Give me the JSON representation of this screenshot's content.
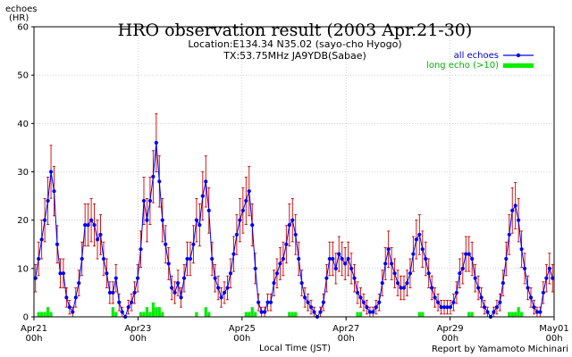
{
  "chart_data": {
    "type": "line",
    "title": "HRO observation result (2003 Apr.21-30)",
    "location": "Location:E134.34 N35.02 (sayo-cho Hyogo)",
    "transmitter": "TX:53.75MHz JA9YDB(Sabae)",
    "ylabel_line1": "echoes",
    "ylabel_line2": "(HR)",
    "xlabel": "Local Time (JST)",
    "credit": "Report by Yamamoto Michinari",
    "ylim": [
      0,
      60
    ],
    "yticks": [
      "0",
      "10",
      "20",
      "30",
      "40",
      "50",
      "60"
    ],
    "xticks": [
      {
        "label": "Apr21",
        "sub": "00h"
      },
      {
        "label": "Apr23",
        "sub": "00h"
      },
      {
        "label": "Apr25",
        "sub": "00h"
      },
      {
        "label": "Apr27",
        "sub": "00h"
      },
      {
        "label": "Apr29",
        "sub": "00h"
      },
      {
        "label": "May01",
        "sub": "00h"
      }
    ],
    "series": [
      {
        "name": "all echoes",
        "color": "#0000ee",
        "error_color": "#cc0000"
      },
      {
        "name": "long echo (>10)",
        "color": "#00ee00"
      }
    ],
    "all_echoes": [
      8,
      12,
      16,
      20,
      24,
      30,
      26,
      15,
      9,
      9,
      4,
      2,
      1,
      4,
      7,
      12,
      19,
      19,
      20,
      19,
      16,
      17,
      12,
      9,
      5,
      5,
      8,
      3,
      1,
      0,
      2,
      3,
      5,
      8,
      14,
      24,
      20,
      24,
      29,
      36,
      28,
      20,
      15,
      11,
      6,
      5,
      7,
      4,
      8,
      12,
      12,
      15,
      20,
      19,
      25,
      28,
      22,
      12,
      8,
      6,
      4,
      5,
      6,
      9,
      13,
      17,
      20,
      22,
      24,
      26,
      19,
      10,
      3,
      1,
      1,
      3,
      3,
      7,
      9,
      11,
      12,
      15,
      19,
      20,
      17,
      12,
      7,
      4,
      3,
      2,
      1,
      0,
      1,
      3,
      8,
      12,
      12,
      10,
      13,
      12,
      11,
      12,
      10,
      8,
      5,
      4,
      3,
      2,
      1,
      1,
      2,
      3,
      7,
      11,
      14,
      11,
      9,
      7,
      6,
      6,
      7,
      9,
      13,
      16,
      17,
      14,
      12,
      9,
      6,
      4,
      3,
      2,
      2,
      2,
      2,
      3,
      5,
      9,
      10,
      13,
      13,
      12,
      8,
      6,
      4,
      2,
      1,
      0,
      1,
      2,
      3,
      7,
      12,
      17,
      22,
      23,
      20,
      14,
      10,
      6,
      4,
      2,
      1,
      1,
      5,
      8,
      10,
      8
    ],
    "long_echo": [
      0,
      1,
      1,
      1,
      2,
      1,
      0,
      0,
      0,
      0,
      0,
      0,
      0,
      0,
      0,
      0,
      0,
      0,
      0,
      0,
      0,
      0,
      0,
      0,
      0,
      2,
      1,
      0,
      0,
      0,
      0,
      0,
      0,
      0,
      1,
      1,
      2,
      1,
      3,
      2,
      2,
      1,
      0,
      0,
      0,
      0,
      0,
      0,
      0,
      0,
      0,
      0,
      1,
      0,
      0,
      2,
      1,
      0,
      0,
      0,
      0,
      0,
      0,
      0,
      0,
      0,
      0,
      0,
      1,
      1,
      2,
      1,
      0,
      0,
      0,
      0,
      0,
      0,
      0,
      0,
      0,
      0,
      1,
      1,
      1,
      0,
      0,
      0,
      0,
      0,
      0,
      0,
      0,
      0,
      0,
      0,
      0,
      0,
      0,
      0,
      0,
      0,
      0,
      0,
      1,
      1,
      0,
      0,
      0,
      0,
      0,
      0,
      0,
      0,
      0,
      0,
      0,
      0,
      0,
      0,
      0,
      0,
      0,
      0,
      1,
      1,
      0,
      0,
      0,
      0,
      0,
      0,
      0,
      0,
      0,
      0,
      0,
      0,
      0,
      0,
      1,
      1,
      0,
      0,
      0,
      0,
      0,
      0,
      0,
      0,
      0,
      0,
      0,
      1,
      1,
      1,
      2,
      1,
      0,
      0,
      0,
      0,
      0,
      0,
      0,
      0,
      0,
      0
    ]
  }
}
